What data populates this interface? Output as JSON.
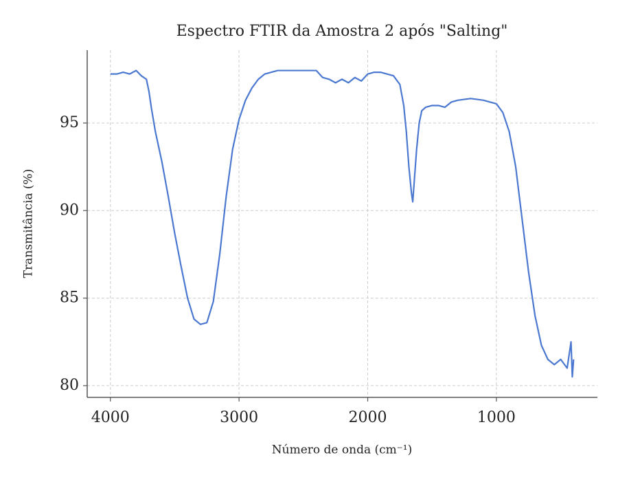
{
  "chart_data": {
    "type": "line",
    "title": "Espectro FTIR da Amostra 2 após \"Salting\"",
    "x_label": "Número de onda (cm⁻¹)",
    "y_label": "Transmitância (%)",
    "x": [
      4000,
      3950,
      3900,
      3850,
      3800,
      3760,
      3720,
      3700,
      3680,
      3650,
      3600,
      3550,
      3500,
      3450,
      3400,
      3350,
      3300,
      3250,
      3200,
      3150,
      3100,
      3050,
      3000,
      2950,
      2900,
      2850,
      2800,
      2700,
      2600,
      2500,
      2400,
      2350,
      2300,
      2250,
      2200,
      2150,
      2100,
      2050,
      2000,
      1950,
      1900,
      1850,
      1800,
      1750,
      1720,
      1700,
      1680,
      1660,
      1650,
      1640,
      1620,
      1600,
      1580,
      1550,
      1500,
      1450,
      1400,
      1350,
      1300,
      1200,
      1100,
      1050,
      1000,
      950,
      900,
      850,
      800,
      750,
      700,
      650,
      600,
      550,
      500,
      450,
      420,
      410,
      400
    ],
    "values": [
      97.8,
      97.8,
      97.9,
      97.8,
      98.0,
      97.7,
      97.5,
      96.8,
      95.8,
      94.5,
      92.8,
      90.8,
      88.7,
      86.8,
      85.0,
      83.8,
      83.5,
      83.6,
      84.8,
      87.5,
      90.8,
      93.5,
      95.2,
      96.3,
      97.0,
      97.5,
      97.8,
      98.0,
      98.0,
      98.0,
      98.0,
      97.6,
      97.5,
      97.3,
      97.5,
      97.3,
      97.6,
      97.4,
      97.8,
      97.9,
      97.9,
      97.8,
      97.7,
      97.2,
      96.0,
      94.5,
      92.5,
      91.0,
      90.5,
      91.5,
      93.5,
      95.0,
      95.7,
      95.9,
      96.0,
      96.0,
      95.9,
      96.2,
      96.3,
      96.4,
      96.3,
      96.2,
      96.1,
      95.6,
      94.5,
      92.5,
      89.5,
      86.5,
      84.0,
      82.3,
      81.5,
      81.2,
      81.5,
      81.0,
      82.5,
      80.5,
      81.5
    ],
    "color": "#4a78d0",
    "xlim": [
      4180,
      215
    ],
    "xticks": [
      4000,
      3000,
      2000,
      1000
    ],
    "ylim": [
      79.33,
      99.16
    ],
    "yticks": [
      80,
      85,
      90,
      95
    ],
    "grid": true
  }
}
